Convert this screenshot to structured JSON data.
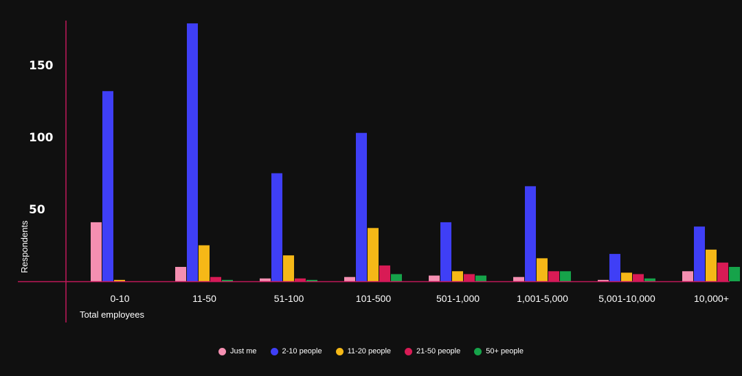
{
  "chart_data": {
    "type": "bar",
    "xlabel": "Total employees",
    "ylabel": "Respondents",
    "ylim": [
      0,
      180
    ],
    "yticks": [
      50,
      100,
      150
    ],
    "grid": false,
    "legend_position": "bottom",
    "categories": [
      "0-10",
      "11-50",
      "51-100",
      "101-500",
      "501-1,000",
      "1,001-5,000",
      "5,001-10,000",
      "10,000+"
    ],
    "series": [
      {
        "name": "Just me",
        "color": "#f48fb1",
        "values": [
          41,
          10,
          2,
          3,
          4,
          3,
          1,
          7
        ]
      },
      {
        "name": "2-10 people",
        "color": "#3f3ff6",
        "values": [
          132,
          179,
          75,
          103,
          41,
          66,
          19,
          38
        ]
      },
      {
        "name": "11-20 people",
        "color": "#f5b817",
        "values": [
          1,
          25,
          18,
          37,
          7,
          16,
          6,
          22
        ]
      },
      {
        "name": "21-50 people",
        "color": "#d81b55",
        "values": [
          0,
          3,
          2,
          11,
          5,
          7,
          5,
          13
        ]
      },
      {
        "name": "50+ people",
        "color": "#16a34a",
        "values": [
          0,
          1,
          1,
          5,
          4,
          7,
          2,
          10
        ]
      }
    ],
    "axis_color": "#c2185b"
  }
}
